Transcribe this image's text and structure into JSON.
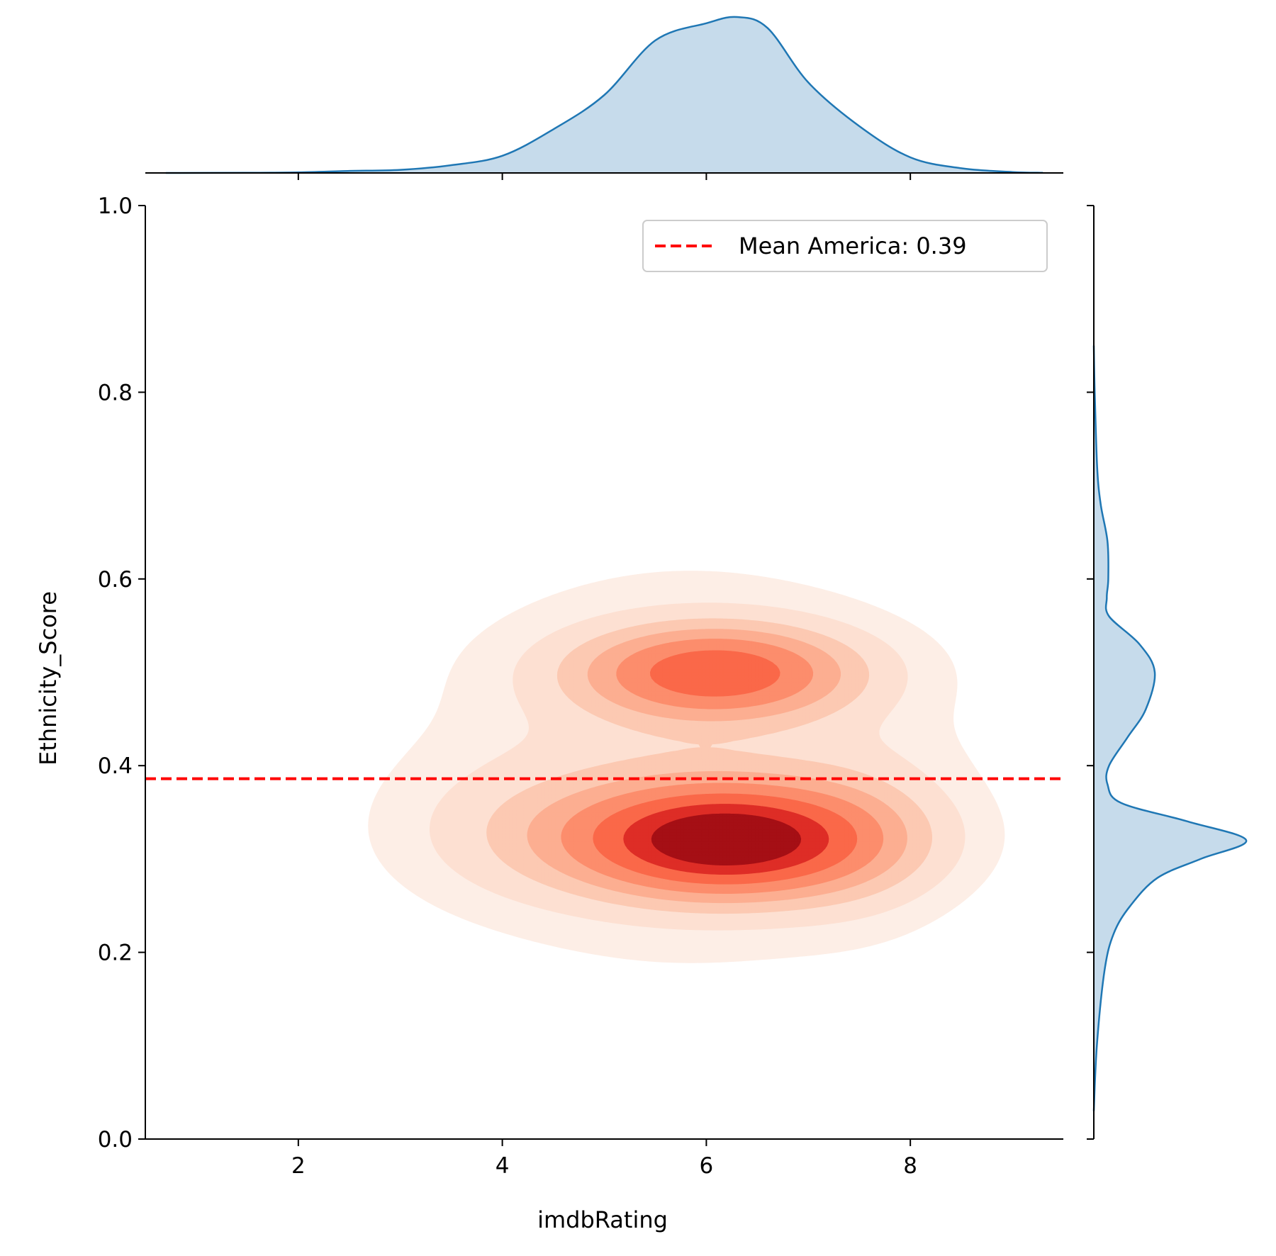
{
  "chart_data": {
    "type": "kde-joint",
    "xlabel": "imdbRating",
    "ylabel": "Ethnicity_Score",
    "xlim": [
      0.5,
      9.5
    ],
    "ylim": [
      0.0,
      1.0
    ],
    "x_ticks": [
      2,
      4,
      6,
      8
    ],
    "y_ticks": [
      0.0,
      0.2,
      0.4,
      0.6,
      0.8,
      1.0
    ],
    "x_tick_labels": [
      "2",
      "4",
      "6",
      "8"
    ],
    "y_tick_labels": [
      "0.0",
      "0.2",
      "0.4",
      "0.6",
      "0.8",
      "1.0"
    ],
    "reference_line": {
      "y": 0.386,
      "color": "#ff0000",
      "style": "dashed",
      "label": "Mean America: 0.39"
    },
    "legend": {
      "entries": [
        "Mean America: 0.39"
      ],
      "placement": "top-right"
    },
    "grid": false,
    "colormap": "Reds",
    "kde_levels": 8,
    "density_peaks": [
      {
        "x": 6.2,
        "y": 0.32
      },
      {
        "x": 6.1,
        "y": 0.5
      }
    ],
    "marginal_x": {
      "color": "#1f77b4",
      "fill": "#c6dbeb",
      "x": [
        0.7,
        1.5,
        2.0,
        2.5,
        3.0,
        3.5,
        4.0,
        4.5,
        5.0,
        5.5,
        6.0,
        6.3,
        6.6,
        7.0,
        7.5,
        8.0,
        8.5,
        9.0,
        9.3
      ],
      "density": [
        0.0,
        0.001,
        0.004,
        0.013,
        0.02,
        0.05,
        0.11,
        0.28,
        0.5,
        0.85,
        0.96,
        1.0,
        0.93,
        0.58,
        0.3,
        0.1,
        0.03,
        0.006,
        0.001
      ]
    },
    "marginal_y": {
      "color": "#1f77b4",
      "fill": "#c6dbeb",
      "y": [
        0.03,
        0.1,
        0.18,
        0.22,
        0.25,
        0.28,
        0.3,
        0.32,
        0.34,
        0.36,
        0.38,
        0.4,
        0.43,
        0.46,
        0.5,
        0.53,
        0.56,
        0.58,
        0.6,
        0.64,
        0.68,
        0.72,
        0.8,
        0.85
      ],
      "density": [
        0.0,
        0.02,
        0.07,
        0.13,
        0.24,
        0.42,
        0.7,
        1.0,
        0.62,
        0.18,
        0.09,
        0.1,
        0.22,
        0.34,
        0.4,
        0.3,
        0.1,
        0.085,
        0.095,
        0.09,
        0.045,
        0.022,
        0.006,
        0.0
      ]
    }
  }
}
